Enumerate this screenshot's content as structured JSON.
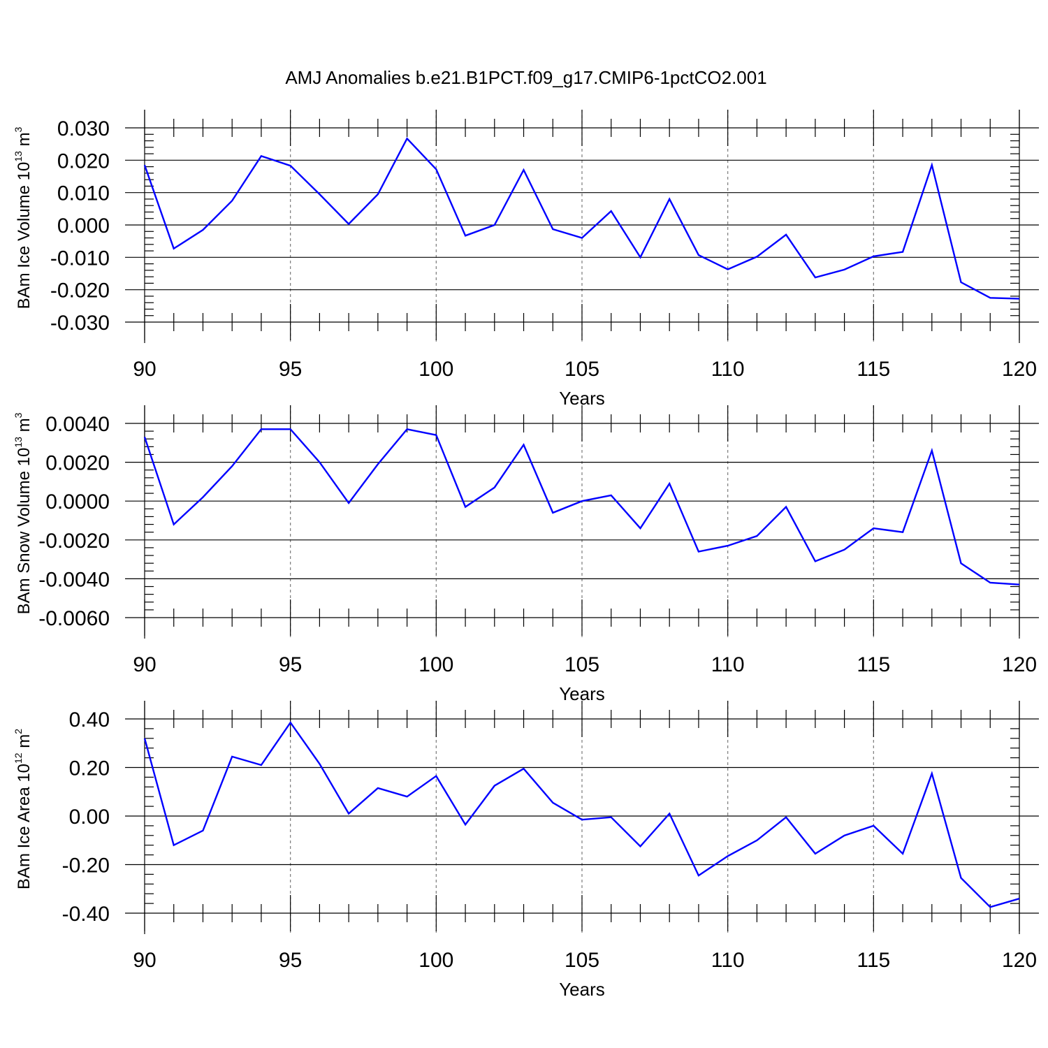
{
  "title": "AMJ Anomalies b.e21.B1PCT.f09_g17.CMIP6-1pctCO2.001",
  "colors": {
    "line": "#0000ff",
    "grid": "#7a7a7a",
    "axes": "#000000"
  },
  "chart_data": [
    {
      "type": "line",
      "ylabel_main": "BAm Ice Volume 10",
      "ylabel_exp": "13",
      "ylabel_unit": " m",
      "ylabel_unit_exp": "3",
      "xlabel": "Years",
      "xlim": [
        90,
        120
      ],
      "ylim": [
        -0.03,
        0.03
      ],
      "yticks": [
        0.03,
        0.02,
        0.01,
        0.0,
        -0.01,
        -0.02,
        -0.03
      ],
      "ytick_labels": [
        "0.030",
        "0.020",
        "0.010",
        "0.000",
        "-0.010",
        "-0.020",
        "-0.030"
      ],
      "xticks": [
        90,
        95,
        100,
        105,
        110,
        115,
        120
      ],
      "xtick_labels": [
        "90",
        "95",
        "100",
        "105",
        "110",
        "115",
        "120"
      ],
      "grid": "dashed vertical lines at major x ticks",
      "x": [
        90,
        91,
        92,
        93,
        94,
        95,
        96,
        97,
        98,
        99,
        100,
        101,
        102,
        103,
        104,
        105,
        106,
        107,
        108,
        109,
        110,
        111,
        112,
        113,
        114,
        115,
        116,
        117,
        118,
        119,
        120
      ],
      "values": [
        0.0185,
        -0.0073,
        -0.0015,
        0.0075,
        0.0213,
        0.0183,
        0.0095,
        0.0003,
        0.0095,
        0.0267,
        0.0172,
        -0.0033,
        0.0,
        0.017,
        -0.0013,
        -0.004,
        0.0043,
        -0.01,
        0.008,
        -0.0093,
        -0.0137,
        -0.0098,
        -0.003,
        -0.0162,
        -0.0138,
        -0.0097,
        -0.0083,
        0.0185,
        -0.0177,
        -0.0225,
        -0.0228
      ]
    },
    {
      "type": "line",
      "ylabel_main": "BAm Snow Volume 10",
      "ylabel_exp": "13",
      "ylabel_unit": " m",
      "ylabel_unit_exp": "3",
      "xlabel": "Years",
      "xlim": [
        90,
        120
      ],
      "ylim": [
        -0.006,
        0.004
      ],
      "yticks": [
        0.004,
        0.002,
        0.0,
        -0.002,
        -0.004,
        -0.006
      ],
      "ytick_labels": [
        "0.0040",
        "0.0020",
        "0.0000",
        "-0.0020",
        "-0.0040",
        "-0.0060"
      ],
      "xticks": [
        90,
        95,
        100,
        105,
        110,
        115,
        120
      ],
      "xtick_labels": [
        "90",
        "95",
        "100",
        "105",
        "110",
        "115",
        "120"
      ],
      "grid": "dashed vertical lines at major x ticks",
      "x": [
        90,
        91,
        92,
        93,
        94,
        95,
        96,
        97,
        98,
        99,
        100,
        101,
        102,
        103,
        104,
        105,
        106,
        107,
        108,
        109,
        110,
        111,
        112,
        113,
        114,
        115,
        116,
        117,
        118,
        119,
        120
      ],
      "values": [
        0.0033,
        -0.0012,
        0.0002,
        0.0018,
        0.0037,
        0.0037,
        0.002,
        -0.0001,
        0.0019,
        0.0037,
        0.0034,
        -0.0003,
        0.0007,
        0.0029,
        -0.0006,
        0.0,
        0.0003,
        -0.0014,
        0.0009,
        -0.0026,
        -0.0023,
        -0.0018,
        -0.0003,
        -0.0031,
        -0.0025,
        -0.0014,
        -0.0016,
        0.0026,
        -0.0032,
        -0.0042,
        -0.0043
      ]
    },
    {
      "type": "line",
      "ylabel_main": "BAm Ice Area 10",
      "ylabel_exp": "12",
      "ylabel_unit": " m",
      "ylabel_unit_exp": "2",
      "xlabel": "Years",
      "xlim": [
        90,
        120
      ],
      "ylim": [
        -0.4,
        0.4
      ],
      "yticks": [
        0.4,
        0.2,
        0.0,
        -0.2,
        -0.4
      ],
      "ytick_labels": [
        "0.40",
        "0.20",
        "0.00",
        "-0.20",
        "-0.40"
      ],
      "xticks": [
        90,
        95,
        100,
        105,
        110,
        115,
        120
      ],
      "xtick_labels": [
        "90",
        "95",
        "100",
        "105",
        "110",
        "115",
        "120"
      ],
      "grid": "dashed vertical lines at major x ticks",
      "x": [
        90,
        91,
        92,
        93,
        94,
        95,
        96,
        97,
        98,
        99,
        100,
        101,
        102,
        103,
        104,
        105,
        106,
        107,
        108,
        109,
        110,
        111,
        112,
        113,
        114,
        115,
        116,
        117,
        118,
        119,
        120
      ],
      "values": [
        0.32,
        -0.12,
        -0.06,
        0.245,
        0.21,
        0.385,
        0.215,
        0.01,
        0.115,
        0.08,
        0.165,
        -0.035,
        0.125,
        0.195,
        0.055,
        -0.015,
        -0.005,
        -0.125,
        0.01,
        -0.245,
        -0.165,
        -0.1,
        -0.005,
        -0.155,
        -0.08,
        -0.04,
        -0.155,
        0.175,
        -0.255,
        -0.375,
        -0.34
      ]
    }
  ]
}
